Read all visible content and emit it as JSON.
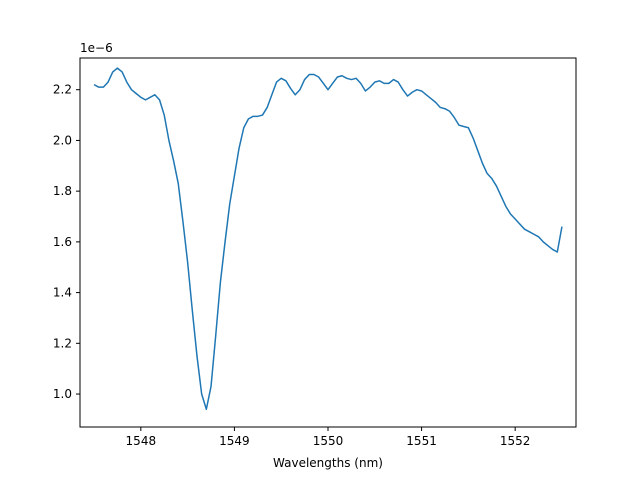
{
  "chart_data": {
    "type": "line",
    "title": "",
    "xlabel": "Wavelengths (nm)",
    "ylabel": "",
    "y_offset_label": "1e−6",
    "xlim": [
      1547.35,
      1552.65
    ],
    "ylim": [
      0.87,
      2.325
    ],
    "x_ticks": [
      1548,
      1549,
      1550,
      1551,
      1552
    ],
    "y_ticks": [
      1.0,
      1.2,
      1.4,
      1.6,
      1.8,
      2.0,
      2.2
    ],
    "x_tick_labels": [
      "1548",
      "1549",
      "1550",
      "1551",
      "1552"
    ],
    "y_tick_labels": [
      "1.0",
      "1.2",
      "1.4",
      "1.6",
      "1.8",
      "2.0",
      "2.2"
    ],
    "grid": false,
    "color": "#1f77b4",
    "series": [
      {
        "x": [
          1547.5,
          1547.55,
          1547.6,
          1547.65,
          1547.7,
          1547.75,
          1547.8,
          1547.85,
          1547.9,
          1547.95,
          1548.0,
          1548.05,
          1548.1,
          1548.15,
          1548.2,
          1548.25,
          1548.3,
          1548.35,
          1548.4,
          1548.45,
          1548.5,
          1548.55,
          1548.6,
          1548.65,
          1548.7,
          1548.75,
          1548.8,
          1548.85,
          1548.9,
          1548.95,
          1549.0,
          1549.05,
          1549.1,
          1549.15,
          1549.2,
          1549.25,
          1549.3,
          1549.35,
          1549.4,
          1549.45,
          1549.5,
          1549.55,
          1549.6,
          1549.65,
          1549.7,
          1549.75,
          1549.8,
          1549.85,
          1549.9,
          1549.95,
          1550.0,
          1550.05,
          1550.1,
          1550.15,
          1550.2,
          1550.25,
          1550.3,
          1550.35,
          1550.4,
          1550.45,
          1550.5,
          1550.55,
          1550.6,
          1550.65,
          1550.7,
          1550.75,
          1550.8,
          1550.85,
          1550.9,
          1550.95,
          1551.0,
          1551.05,
          1551.1,
          1551.15,
          1551.2,
          1551.25,
          1551.3,
          1551.35,
          1551.4,
          1551.45,
          1551.5,
          1551.55,
          1551.6,
          1551.65,
          1551.7,
          1551.75,
          1551.8,
          1551.85,
          1551.9,
          1551.95,
          1552.0,
          1552.05,
          1552.1,
          1552.15,
          1552.2,
          1552.25,
          1552.3,
          1552.35,
          1552.4,
          1552.45,
          1552.5
        ],
        "y": [
          2.22,
          2.21,
          2.21,
          2.23,
          2.27,
          2.285,
          2.27,
          2.23,
          2.2,
          2.185,
          2.17,
          2.16,
          2.17,
          2.18,
          2.16,
          2.1,
          2.0,
          1.92,
          1.83,
          1.68,
          1.52,
          1.33,
          1.15,
          1.0,
          0.94,
          1.03,
          1.23,
          1.44,
          1.6,
          1.75,
          1.86,
          1.97,
          2.05,
          2.085,
          2.095,
          2.095,
          2.1,
          2.13,
          2.18,
          2.23,
          2.245,
          2.235,
          2.205,
          2.18,
          2.2,
          2.24,
          2.26,
          2.26,
          2.25,
          2.225,
          2.2,
          2.225,
          2.25,
          2.255,
          2.245,
          2.24,
          2.245,
          2.225,
          2.195,
          2.21,
          2.23,
          2.235,
          2.225,
          2.225,
          2.24,
          2.23,
          2.2,
          2.175,
          2.19,
          2.2,
          2.195,
          2.18,
          2.165,
          2.15,
          2.13,
          2.125,
          2.115,
          2.09,
          2.06,
          2.055,
          2.05,
          2.01,
          1.96,
          1.91,
          1.87,
          1.85,
          1.82,
          1.78,
          1.74,
          1.71,
          1.69,
          1.67,
          1.65,
          1.64,
          1.63,
          1.62,
          1.6,
          1.585,
          1.57,
          1.56,
          1.66
        ]
      }
    ]
  }
}
